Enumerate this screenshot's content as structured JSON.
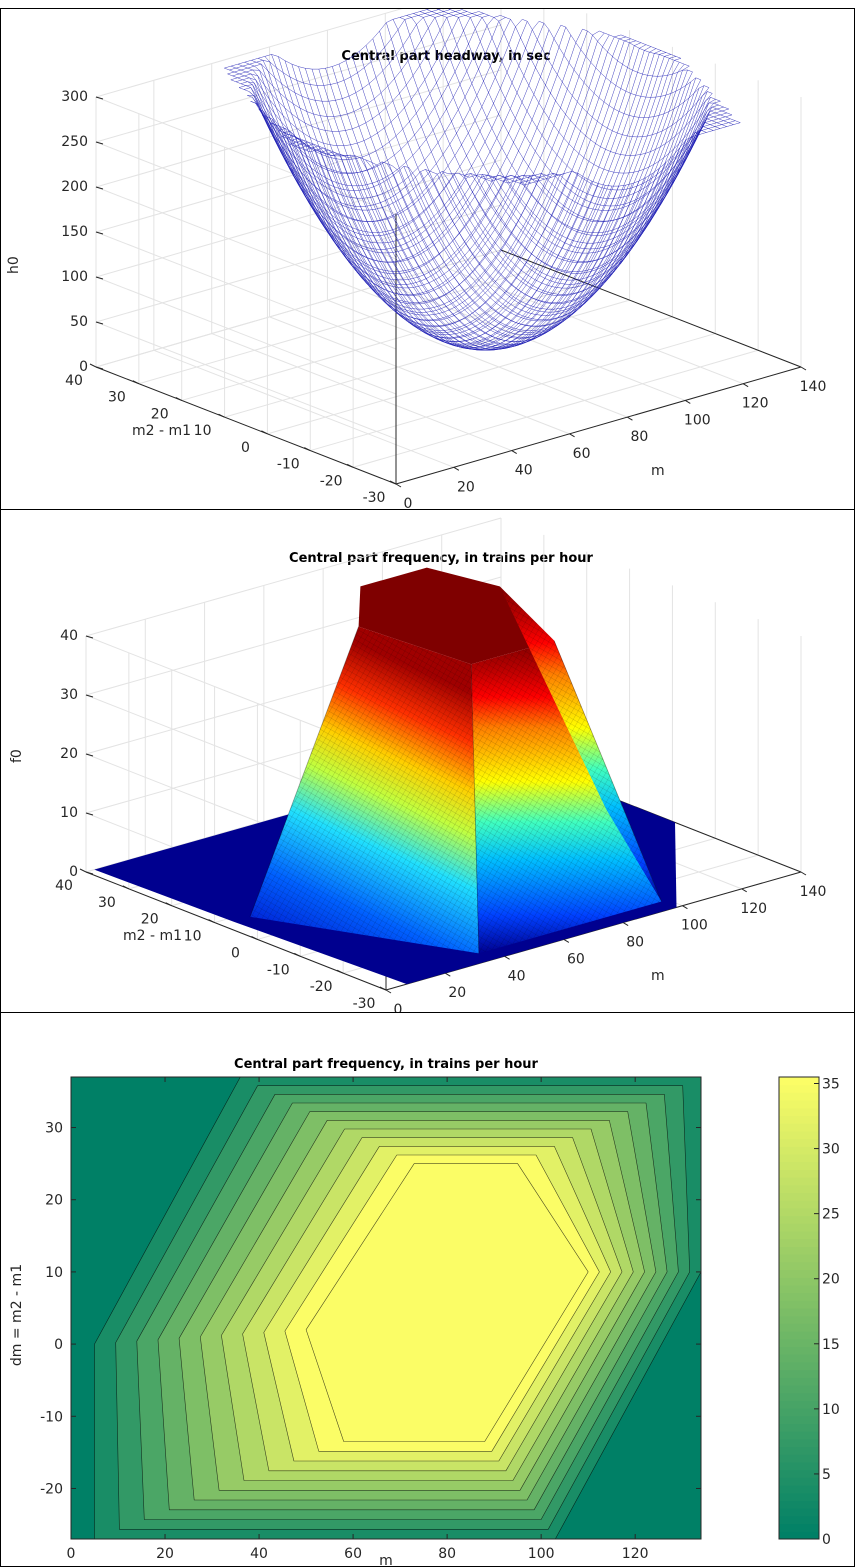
{
  "chart_data": [
    {
      "type": "surface",
      "style": "mesh",
      "title": "Central part headway, in sec",
      "xlabel": "m",
      "ylabel": "m2 - m1",
      "zlabel": "h0",
      "x_ticks": [
        "0",
        "20",
        "40",
        "60",
        "80",
        "100",
        "120",
        "140"
      ],
      "y_ticks": [
        "-30",
        "-20",
        "-10",
        "0",
        "10",
        "20",
        "30",
        "40"
      ],
      "z_ticks": [
        "0",
        "50",
        "100",
        "150",
        "200",
        "250",
        "300"
      ],
      "xlim": [
        0,
        140
      ],
      "ylim": [
        -30,
        40
      ],
      "zlim": [
        0,
        300
      ],
      "grid": true,
      "mesh_color": "#1f1fb4"
    },
    {
      "type": "surface",
      "style": "filled",
      "colormap": "jet",
      "title": "Central part frequency, in trains per hour",
      "xlabel": "m",
      "ylabel": "m2 - m1",
      "zlabel": "f0",
      "x_ticks": [
        "0",
        "20",
        "40",
        "60",
        "80",
        "100",
        "120",
        "140"
      ],
      "y_ticks": [
        "-30",
        "-20",
        "-10",
        "0",
        "10",
        "20",
        "30",
        "40"
      ],
      "z_ticks": [
        "0",
        "10",
        "20",
        "30",
        "40"
      ],
      "xlim": [
        0,
        140
      ],
      "ylim": [
        -30,
        40
      ],
      "zlim": [
        0,
        40
      ],
      "grid": true
    },
    {
      "type": "contour",
      "style": "filled",
      "colormap": "summer",
      "title": "Central part frequency, in trains per hour",
      "xlabel": "m",
      "ylabel": "dm = m2 - m1",
      "x_ticks": [
        "0",
        "20",
        "40",
        "60",
        "80",
        "100",
        "120"
      ],
      "y_ticks": [
        "-20",
        "-10",
        "0",
        "10",
        "20",
        "30"
      ],
      "xlim": [
        0,
        134
      ],
      "ylim": [
        -27,
        37
      ],
      "levels": [
        0,
        3.5,
        7,
        10.5,
        14,
        17.5,
        21,
        24.5,
        28,
        31.5,
        35
      ],
      "colorbar": {
        "ticks": [
          "0",
          "5",
          "10",
          "15",
          "20",
          "25",
          "30",
          "35"
        ],
        "range": [
          0,
          35.5
        ]
      },
      "outer_polygon": [
        [
          5,
          0
        ],
        [
          36,
          37
        ],
        [
          134,
          37
        ],
        [
          134,
          10
        ],
        [
          103,
          -27
        ],
        [
          5,
          -27
        ]
      ],
      "inner_polygon": [
        [
          50,
          2
        ],
        [
          73,
          25
        ],
        [
          95,
          25
        ],
        [
          110,
          10
        ],
        [
          88,
          -13.5
        ],
        [
          58,
          -13.5
        ]
      ],
      "plateau_value": 35
    }
  ]
}
